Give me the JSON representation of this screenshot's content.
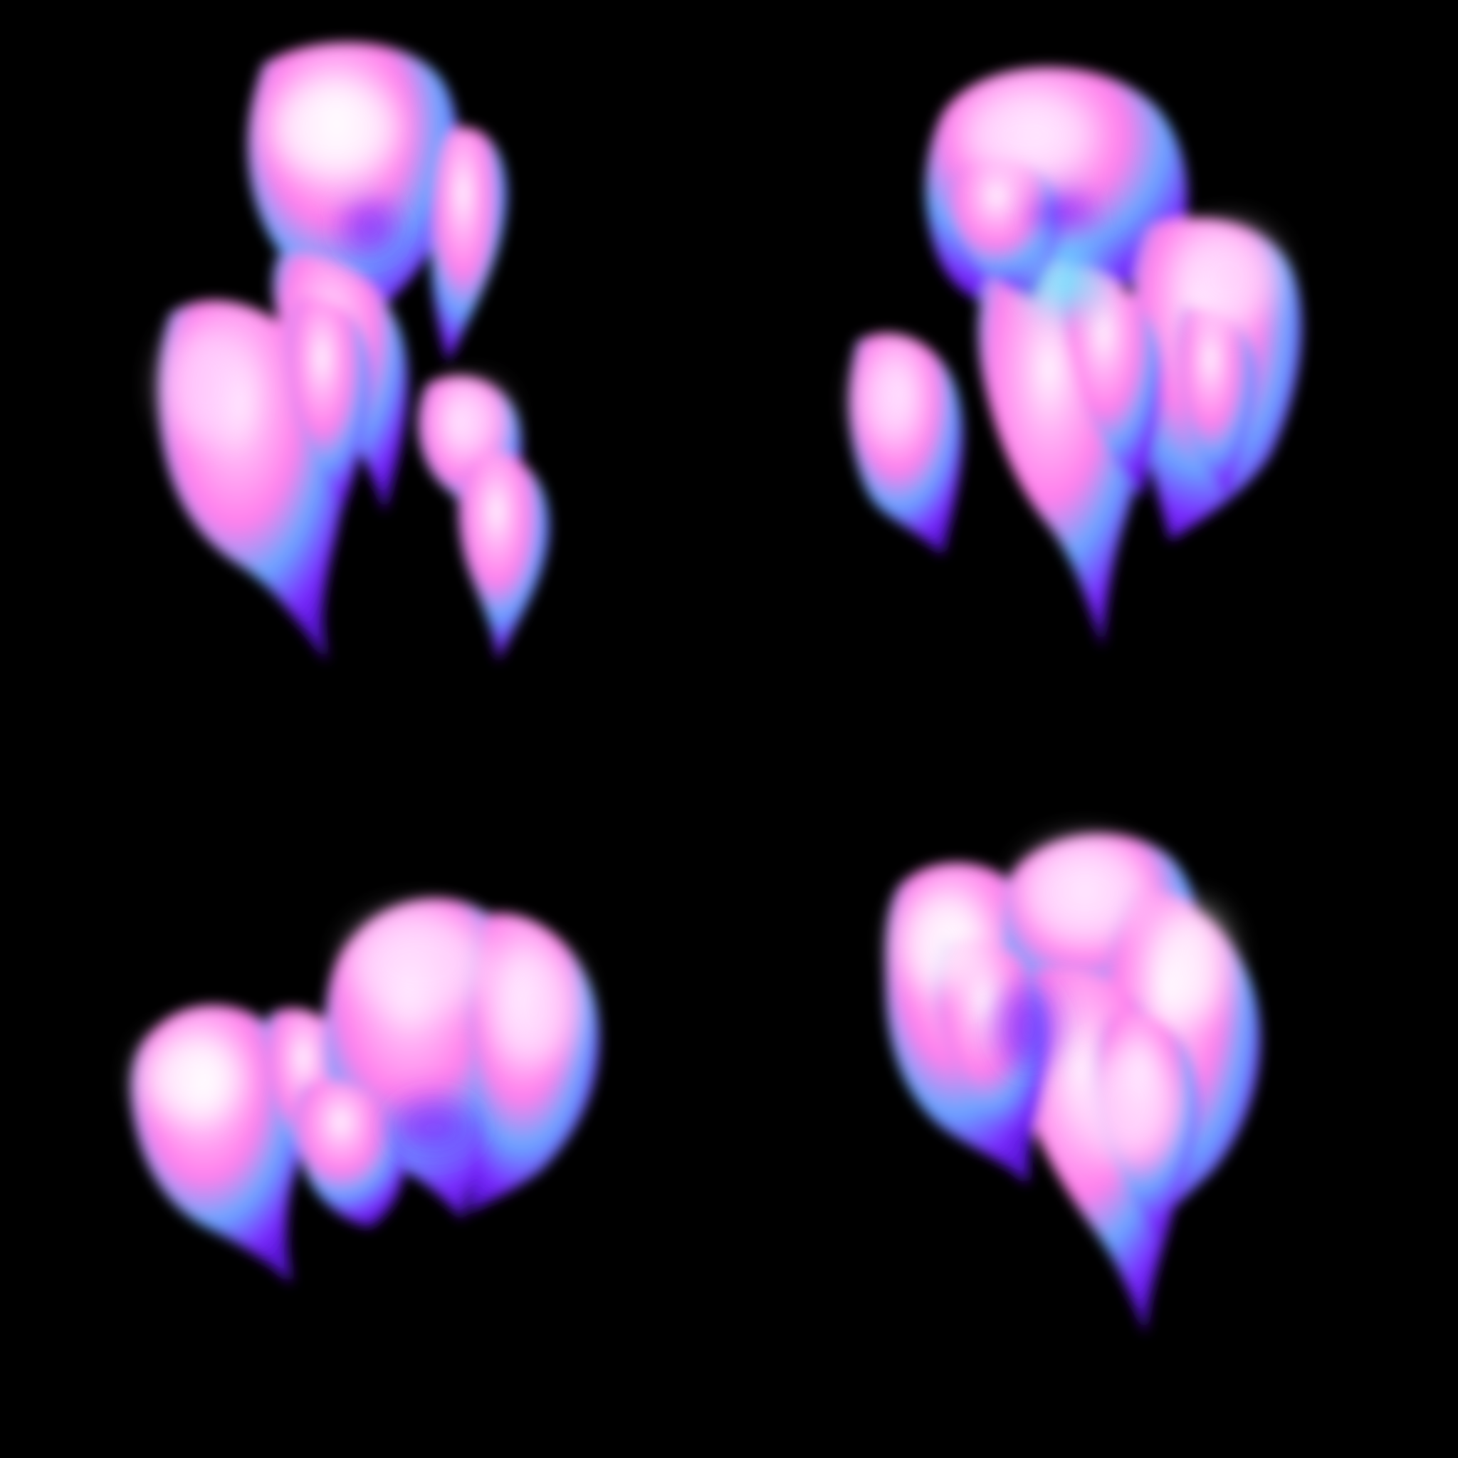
{
  "sprite_sheet": {
    "background_color": "#000000",
    "grid": {
      "columns": 2,
      "rows": 2
    },
    "palette": {
      "highlight_white": "#fff4ff",
      "pink": "#ff8ef0",
      "magenta": "#f04bf0",
      "cyan_rim": "#6ff6ff",
      "blue": "#5b9bff",
      "violet": "#7a2cff"
    },
    "frames": [
      {
        "index": 1,
        "icon": "smoke-puff-icon",
        "blob_count": 7
      },
      {
        "index": 2,
        "icon": "smoke-puff-icon",
        "blob_count": 7
      },
      {
        "index": 3,
        "icon": "smoke-puff-icon",
        "blob_count": 5
      },
      {
        "index": 4,
        "icon": "smoke-puff-icon",
        "blob_count": 6
      }
    ]
  }
}
